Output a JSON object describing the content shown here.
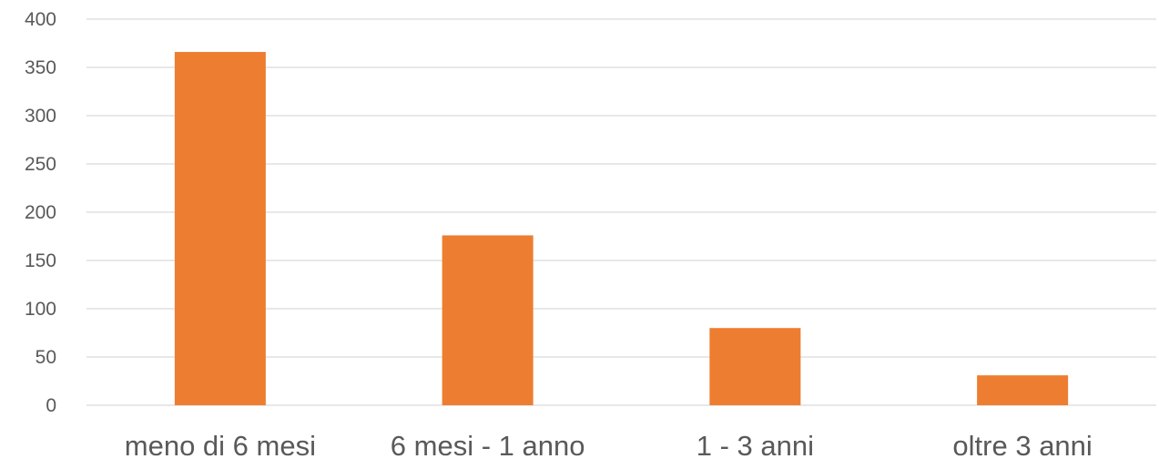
{
  "chart_data": {
    "type": "bar",
    "categories": [
      "meno di 6 mesi",
      "6 mesi - 1 anno",
      "1 - 3 anni",
      "oltre 3 anni"
    ],
    "values": [
      366,
      176,
      80,
      31
    ],
    "yticks": [
      0,
      50,
      100,
      150,
      200,
      250,
      300,
      350,
      400
    ],
    "ylim": [
      0,
      400
    ],
    "grid": true,
    "legend": "none",
    "bar_color": "#ED7D31",
    "gridline_color": "#D9D9D9",
    "label_color": "#595959"
  }
}
